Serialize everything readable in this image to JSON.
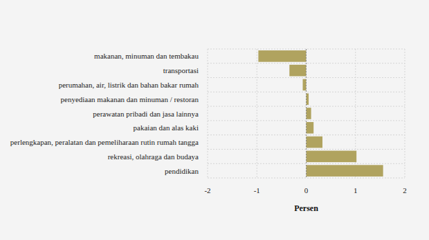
{
  "chart_data": {
    "type": "bar",
    "orientation": "horizontal",
    "categories": [
      "makanan, minuman dan tembakau",
      "transportasi",
      "perumahan, air, listrik dan bahan bakar rumah",
      "penyediaan makanan dan minuman / restoran",
      "perawatan pribadi dan jasa lainnya",
      "pakaian dan alas kaki",
      "perlengkapan, peralatan dan pemeliharaan rutin rumah tangga",
      "rekreasi, olahraga dan budaya",
      "pendidikan"
    ],
    "values": [
      -0.97,
      -0.34,
      -0.07,
      0.05,
      0.1,
      0.15,
      0.33,
      1.02,
      1.56
    ],
    "color": "#b0a35f",
    "x_label": "Persen",
    "xlim": [
      -2,
      2
    ],
    "xticks": [
      -2,
      -1,
      0,
      1,
      2
    ],
    "grid": true
  }
}
